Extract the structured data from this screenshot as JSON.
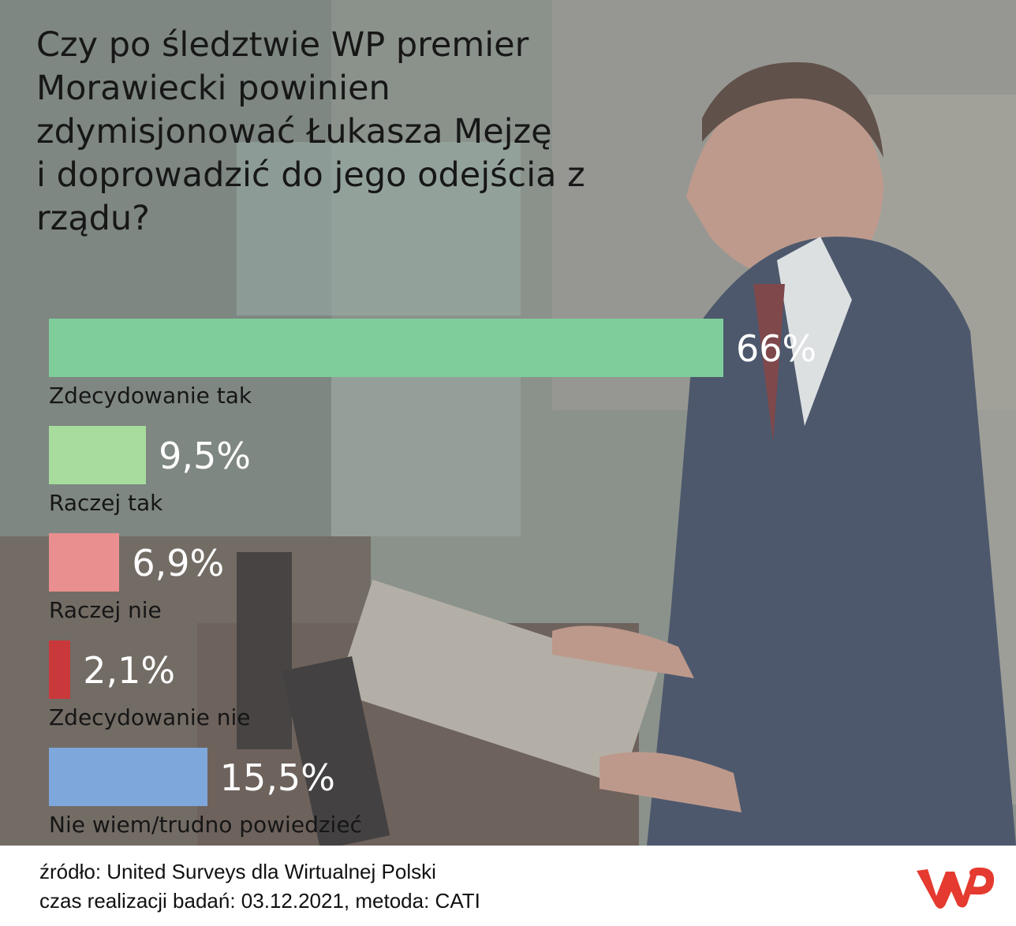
{
  "title": "Czy po śledztwie WP premier Morawiecki powinien zdymisjonować Łukasza Mejzę i doprowadzić do jego odejścia z rządu?",
  "title_lines": [
    "Czy po śledztwie WP premier",
    "Morawiecki powinien",
    "zdymisjonować Łukasza Mejzę",
    "i doprowadzić do jego odejścia z",
    "rządu?"
  ],
  "chart_data": {
    "type": "bar",
    "orientation": "horizontal",
    "title": "Czy po śledztwie WP premier Morawiecki powinien zdymisjonować Łukasza Mejzę i doprowadzić do jego odejścia z rządu?",
    "categories": [
      "Zdecydowanie tak",
      "Raczej tak",
      "Raczej nie",
      "Zdecydowanie nie",
      "Nie wiem/trudno powiedzieć"
    ],
    "values": [
      66,
      9.5,
      6.9,
      2.1,
      15.5
    ],
    "labels": [
      "66%",
      "9,5%",
      "6,9%",
      "2,1%",
      "15,5%"
    ],
    "colors": [
      "#7fcd9b",
      "#a7dc9c",
      "#ea8f8f",
      "#c9383b",
      "#7ea7db"
    ],
    "unit": "%",
    "xlim": [
      0,
      66
    ],
    "xlabel": "",
    "ylabel": "",
    "legend": "none",
    "grid": false
  },
  "footer": {
    "source": "źródło: United Surveys dla Wirtualnej Polski",
    "details": "czas realizacji badań: 03.12.2021, metoda: CATI"
  },
  "logo": {
    "name": "wp-logo",
    "color": "#e53a2f"
  }
}
